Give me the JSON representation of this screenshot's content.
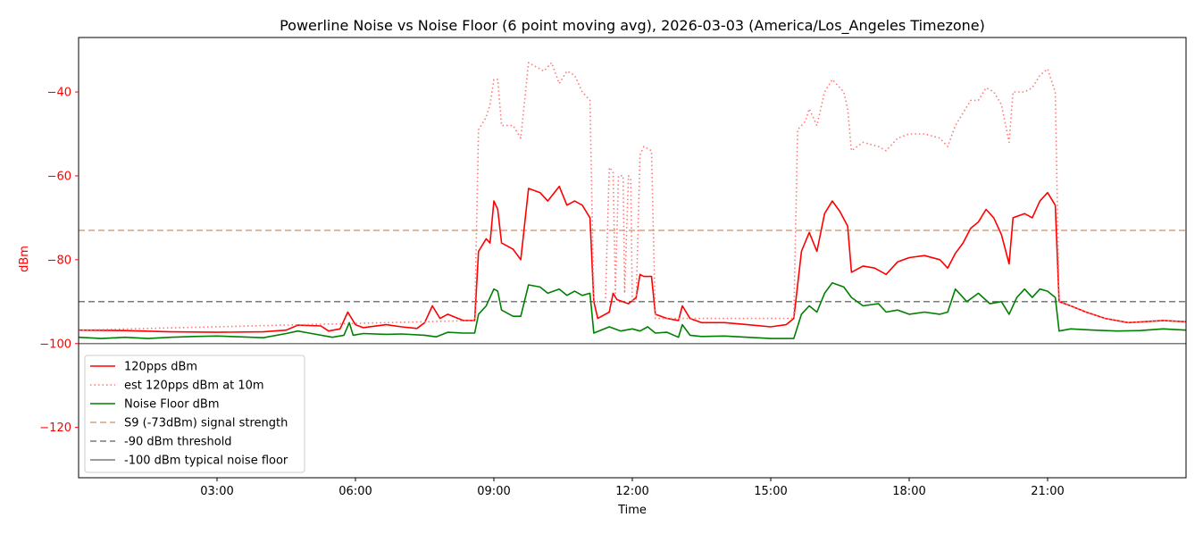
{
  "chart_data": {
    "type": "line",
    "title": "Powerline Noise vs Noise Floor (6 point moving avg), 2026-03-03 (America/Los_Angeles Timezone)",
    "xlabel": "Time",
    "ylabel": "dBm",
    "ylabel_color": "#ff0000",
    "xlim": [
      "00:00",
      "24:00"
    ],
    "ylim": [
      -132,
      -27
    ],
    "x_ticks": [
      "03:00",
      "06:00",
      "09:00",
      "12:00",
      "15:00",
      "18:00",
      "21:00"
    ],
    "y_ticks": [
      -40,
      -60,
      -80,
      -100,
      -120
    ],
    "y_tick_labels": [
      "−40",
      "−60",
      "−80",
      "−100",
      "−120"
    ],
    "grid": false,
    "legend_position": "lower-left",
    "series": [
      {
        "name": "120pps dBm",
        "color": "#ff0000",
        "style": "solid",
        "points": [
          [
            "00:00",
            -96.8
          ],
          [
            "01:00",
            -96.9
          ],
          [
            "02:00",
            -97.2
          ],
          [
            "03:00",
            -97.3
          ],
          [
            "04:00",
            -97.2
          ],
          [
            "04:30",
            -96.8
          ],
          [
            "04:45",
            -95.6
          ],
          [
            "05:15",
            -95.8
          ],
          [
            "05:25",
            -97
          ],
          [
            "05:40",
            -96.5
          ],
          [
            "05:50",
            -92.5
          ],
          [
            "06:00",
            -95.5
          ],
          [
            "06:10",
            -96.2
          ],
          [
            "06:40",
            -95.5
          ],
          [
            "07:00",
            -96
          ],
          [
            "07:20",
            -96.4
          ],
          [
            "07:30",
            -95
          ],
          [
            "07:40",
            -91
          ],
          [
            "07:50",
            -94
          ],
          [
            "08:00",
            -93
          ],
          [
            "08:20",
            -94.5
          ],
          [
            "08:35",
            -94.5
          ],
          [
            "08:40",
            -78
          ],
          [
            "08:50",
            -75
          ],
          [
            "08:55",
            -76
          ],
          [
            "09:00",
            -66
          ],
          [
            "09:05",
            -68
          ],
          [
            "09:10",
            -76
          ],
          [
            "09:25",
            -77.5
          ],
          [
            "09:35",
            -80
          ],
          [
            "09:45",
            -63
          ],
          [
            "10:00",
            -64
          ],
          [
            "10:10",
            -66
          ],
          [
            "10:25",
            -62.5
          ],
          [
            "10:35",
            -67
          ],
          [
            "10:45",
            -66
          ],
          [
            "10:55",
            -67
          ],
          [
            "11:05",
            -70
          ],
          [
            "11:10",
            -90
          ],
          [
            "11:15",
            -94
          ],
          [
            "11:30",
            -92.5
          ],
          [
            "11:35",
            -88
          ],
          [
            "11:40",
            -89.5
          ],
          [
            "11:55",
            -90.5
          ],
          [
            "12:05",
            -89
          ],
          [
            "12:10",
            -83.5
          ],
          [
            "12:15",
            -84
          ],
          [
            "12:25",
            -84
          ],
          [
            "12:30",
            -93
          ],
          [
            "12:45",
            -94
          ],
          [
            "13:00",
            -94.5
          ],
          [
            "13:05",
            -91
          ],
          [
            "13:15",
            -94
          ],
          [
            "13:30",
            -95
          ],
          [
            "14:00",
            -95
          ],
          [
            "14:30",
            -95.5
          ],
          [
            "15:00",
            -96
          ],
          [
            "15:20",
            -95.5
          ],
          [
            "15:30",
            -94
          ],
          [
            "15:40",
            -78
          ],
          [
            "15:50",
            -73.5
          ],
          [
            "16:00",
            -78
          ],
          [
            "16:10",
            -69
          ],
          [
            "16:20",
            -66
          ],
          [
            "16:30",
            -68.5
          ],
          [
            "16:40",
            -72
          ],
          [
            "16:45",
            -83
          ],
          [
            "17:00",
            -81.5
          ],
          [
            "17:15",
            -82
          ],
          [
            "17:30",
            -83.5
          ],
          [
            "17:45",
            -80.5
          ],
          [
            "18:00",
            -79.5
          ],
          [
            "18:20",
            -79
          ],
          [
            "18:40",
            -80
          ],
          [
            "18:50",
            -82
          ],
          [
            "19:00",
            -78.5
          ],
          [
            "19:10",
            -76
          ],
          [
            "19:20",
            -72.5
          ],
          [
            "19:30",
            -71
          ],
          [
            "19:40",
            -68
          ],
          [
            "19:50",
            -70
          ],
          [
            "20:00",
            -74
          ],
          [
            "20:10",
            -81
          ],
          [
            "20:15",
            -70
          ],
          [
            "20:30",
            -69
          ],
          [
            "20:40",
            -70
          ],
          [
            "20:50",
            -66
          ],
          [
            "21:00",
            -64
          ],
          [
            "21:10",
            -67
          ],
          [
            "21:15",
            -90
          ],
          [
            "21:30",
            -91
          ],
          [
            "21:50",
            -92.5
          ],
          [
            "22:15",
            -94
          ],
          [
            "22:45",
            -95
          ],
          [
            "23:30",
            -94.5
          ],
          [
            "24:00",
            -94.8
          ]
        ]
      },
      {
        "name": "est 120pps dBm at 10m",
        "color": "#ff7777",
        "style": "dotted",
        "points": [
          [
            "00:00",
            -96.8
          ],
          [
            "08:35",
            -94.5
          ],
          [
            "08:40",
            -49
          ],
          [
            "08:50",
            -46
          ],
          [
            "08:55",
            -43
          ],
          [
            "09:00",
            -37
          ],
          [
            "09:05",
            -37
          ],
          [
            "09:10",
            -48
          ],
          [
            "09:25",
            -48
          ],
          [
            "09:35",
            -51
          ],
          [
            "09:45",
            -33
          ],
          [
            "09:55",
            -34
          ],
          [
            "10:05",
            -35
          ],
          [
            "10:15",
            -33
          ],
          [
            "10:25",
            -38
          ],
          [
            "10:35",
            -35
          ],
          [
            "10:45",
            -36
          ],
          [
            "10:55",
            -40
          ],
          [
            "11:05",
            -42
          ],
          [
            "11:10",
            -90
          ],
          [
            "11:25",
            -90
          ],
          [
            "11:30",
            -58
          ],
          [
            "11:35",
            -59
          ],
          [
            "11:38",
            -88
          ],
          [
            "11:42",
            -60
          ],
          [
            "11:48",
            -60
          ],
          [
            "11:50",
            -88
          ],
          [
            "11:55",
            -60
          ],
          [
            "11:58",
            -61
          ],
          [
            "12:00",
            -90
          ],
          [
            "12:05",
            -90
          ],
          [
            "12:10",
            -55
          ],
          [
            "12:15",
            -53
          ],
          [
            "12:25",
            -54
          ],
          [
            "12:30",
            -94
          ],
          [
            "15:30",
            -94
          ],
          [
            "15:35",
            -49
          ],
          [
            "15:45",
            -47
          ],
          [
            "15:50",
            -44
          ],
          [
            "16:00",
            -48
          ],
          [
            "16:10",
            -40
          ],
          [
            "16:20",
            -37
          ],
          [
            "16:35",
            -40
          ],
          [
            "16:40",
            -44
          ],
          [
            "16:45",
            -54
          ],
          [
            "17:00",
            -52
          ],
          [
            "17:20",
            -53
          ],
          [
            "17:30",
            -54
          ],
          [
            "17:45",
            -51
          ],
          [
            "18:00",
            -50
          ],
          [
            "18:20",
            -50
          ],
          [
            "18:40",
            -51
          ],
          [
            "18:50",
            -53
          ],
          [
            "19:00",
            -48
          ],
          [
            "19:10",
            -45
          ],
          [
            "19:20",
            -42
          ],
          [
            "19:30",
            -42
          ],
          [
            "19:40",
            -39
          ],
          [
            "19:50",
            -40
          ],
          [
            "20:00",
            -43
          ],
          [
            "20:10",
            -52
          ],
          [
            "20:15",
            -40
          ],
          [
            "20:30",
            -40
          ],
          [
            "20:40",
            -39
          ],
          [
            "20:50",
            -36
          ],
          [
            "21:00",
            -34.5
          ],
          [
            "21:10",
            -40
          ],
          [
            "21:15",
            -90
          ],
          [
            "21:30",
            -91
          ],
          [
            "21:50",
            -92.5
          ],
          [
            "22:15",
            -94
          ],
          [
            "22:45",
            -95
          ],
          [
            "23:30",
            -94.5
          ],
          [
            "24:00",
            -94.8
          ]
        ]
      },
      {
        "name": "Noise Floor dBm",
        "color": "#008000",
        "style": "solid",
        "points": [
          [
            "00:00",
            -98.5
          ],
          [
            "00:30",
            -98.8
          ],
          [
            "01:00",
            -98.5
          ],
          [
            "01:30",
            -98.8
          ],
          [
            "02:00",
            -98.5
          ],
          [
            "02:30",
            -98.3
          ],
          [
            "03:00",
            -98.2
          ],
          [
            "03:30",
            -98.4
          ],
          [
            "04:00",
            -98.6
          ],
          [
            "04:30",
            -97.6
          ],
          [
            "04:45",
            -97
          ],
          [
            "05:00",
            -97.5
          ],
          [
            "05:30",
            -98.5
          ],
          [
            "05:45",
            -98
          ],
          [
            "05:52",
            -95
          ],
          [
            "05:57",
            -98
          ],
          [
            "06:10",
            -97.6
          ],
          [
            "06:40",
            -97.8
          ],
          [
            "07:00",
            -97.7
          ],
          [
            "07:30",
            -98
          ],
          [
            "07:45",
            -98.4
          ],
          [
            "08:00",
            -97.3
          ],
          [
            "08:20",
            -97.5
          ],
          [
            "08:35",
            -97.5
          ],
          [
            "08:40",
            -93
          ],
          [
            "08:50",
            -91
          ],
          [
            "08:55",
            -89
          ],
          [
            "09:00",
            -87
          ],
          [
            "09:05",
            -87.5
          ],
          [
            "09:10",
            -92
          ],
          [
            "09:25",
            -93.5
          ],
          [
            "09:35",
            -93.5
          ],
          [
            "09:45",
            -86
          ],
          [
            "10:00",
            -86.5
          ],
          [
            "10:10",
            -88
          ],
          [
            "10:25",
            -87
          ],
          [
            "10:35",
            -88.5
          ],
          [
            "10:45",
            -87.5
          ],
          [
            "10:55",
            -88.5
          ],
          [
            "11:05",
            -88
          ],
          [
            "11:10",
            -97.5
          ],
          [
            "11:30",
            -96
          ],
          [
            "11:45",
            -97
          ],
          [
            "12:00",
            -96.5
          ],
          [
            "12:10",
            -97
          ],
          [
            "12:20",
            -96
          ],
          [
            "12:30",
            -97.5
          ],
          [
            "12:45",
            -97.3
          ],
          [
            "13:00",
            -98.5
          ],
          [
            "13:05",
            -95.5
          ],
          [
            "13:15",
            -98
          ],
          [
            "13:30",
            -98.3
          ],
          [
            "14:00",
            -98.2
          ],
          [
            "14:30",
            -98.5
          ],
          [
            "15:00",
            -98.8
          ],
          [
            "15:30",
            -98.8
          ],
          [
            "15:40",
            -93
          ],
          [
            "15:50",
            -91
          ],
          [
            "16:00",
            -92.5
          ],
          [
            "16:10",
            -88
          ],
          [
            "16:20",
            -85.5
          ],
          [
            "16:35",
            -86.5
          ],
          [
            "16:45",
            -89
          ],
          [
            "17:00",
            -91
          ],
          [
            "17:20",
            -90.5
          ],
          [
            "17:30",
            -92.5
          ],
          [
            "17:45",
            -92
          ],
          [
            "18:00",
            -93
          ],
          [
            "18:20",
            -92.5
          ],
          [
            "18:40",
            -93
          ],
          [
            "18:50",
            -92.5
          ],
          [
            "19:00",
            -87
          ],
          [
            "19:15",
            -90
          ],
          [
            "19:30",
            -88
          ],
          [
            "19:45",
            -90.5
          ],
          [
            "20:00",
            -90
          ],
          [
            "20:10",
            -93
          ],
          [
            "20:20",
            -89
          ],
          [
            "20:30",
            -87
          ],
          [
            "20:40",
            -89
          ],
          [
            "20:50",
            -87
          ],
          [
            "21:00",
            -87.5
          ],
          [
            "21:10",
            -89
          ],
          [
            "21:15",
            -97
          ],
          [
            "21:30",
            -96.5
          ],
          [
            "22:00",
            -96.8
          ],
          [
            "22:30",
            -97
          ],
          [
            "23:00",
            -96.9
          ],
          [
            "23:30",
            -96.5
          ],
          [
            "24:00",
            -96.8
          ]
        ]
      }
    ],
    "reference_lines": [
      {
        "name": "S9 (-73dBm) signal strength",
        "y": -73,
        "color": "#d9a37a",
        "style": "dashed"
      },
      {
        "name": "-90 dBm threshold",
        "y": -90,
        "color": "#7a7a7a",
        "style": "dashed"
      },
      {
        "name": "-100 dBm typical noise floor",
        "y": -100,
        "color": "#7a7a7a",
        "style": "solid"
      }
    ],
    "legend": [
      "120pps dBm",
      "est 120pps dBm at 10m",
      "Noise Floor dBm",
      "S9 (-73dBm) signal strength",
      "-90 dBm threshold",
      "-100 dBm typical noise floor"
    ]
  }
}
